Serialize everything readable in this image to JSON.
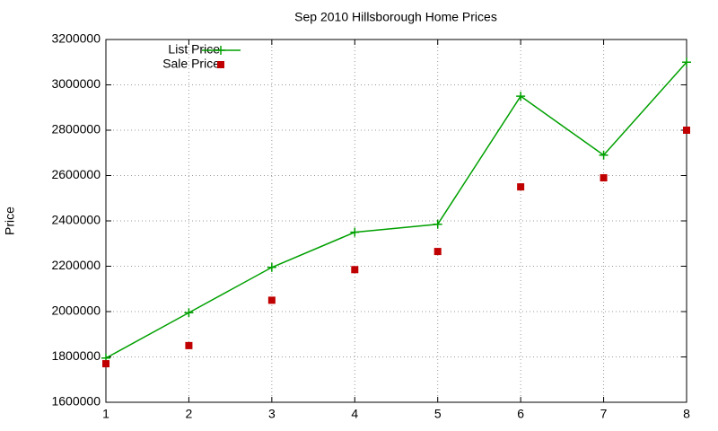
{
  "chart_data": {
    "type": "line",
    "title": "Sep 2010 Hillsborough Home Prices",
    "y_label": "Price",
    "x": [
      1,
      2,
      3,
      4,
      5,
      6,
      7,
      8
    ],
    "series": [
      {
        "name": "List Price",
        "color": "#00a000",
        "style": "linespoints",
        "values": [
          1795000,
          1995000,
          2195000,
          2350000,
          2385000,
          2950000,
          2690000,
          3100000
        ]
      },
      {
        "name": "Sale Price",
        "color": "#c00000",
        "style": "points",
        "values": [
          1770000,
          1850000,
          2050000,
          2185000,
          2265000,
          2550000,
          2590000,
          2800000
        ]
      }
    ],
    "xlim": [
      1,
      8
    ],
    "xticks": [
      1,
      2,
      3,
      4,
      5,
      6,
      7,
      8
    ],
    "ylim": [
      1600000,
      3200000
    ],
    "yticks": [
      1600000,
      1800000,
      2000000,
      2200000,
      2400000,
      2600000,
      2800000,
      3000000,
      3200000
    ],
    "grid": true,
    "legend": "top-left"
  }
}
